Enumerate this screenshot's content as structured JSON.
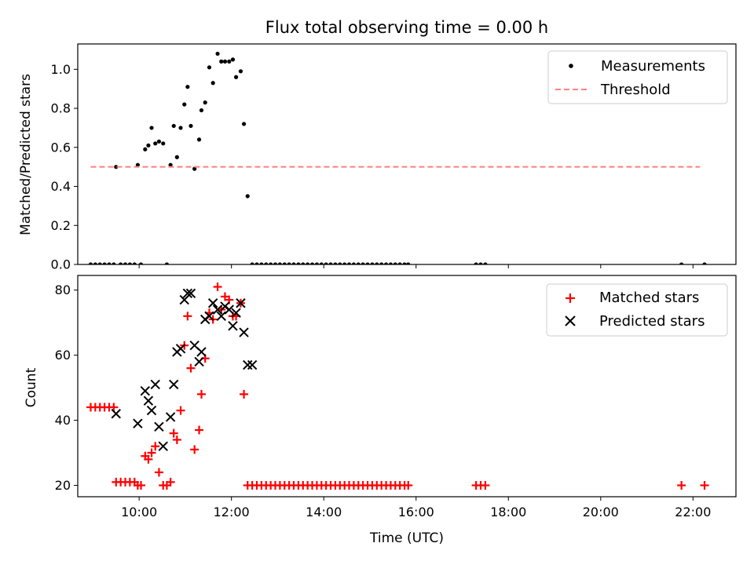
{
  "chart_data": [
    {
      "type": "scatter",
      "title": "Flux total observing time = 0.00 h",
      "xlabel": "",
      "ylabel": "Matched/Predicted stars",
      "xlim": [
        8.67,
        22.93
      ],
      "ylim": [
        0.0,
        1.13
      ],
      "yticks": [
        0.0,
        0.2,
        0.4,
        0.6,
        0.8,
        1.0
      ],
      "xticks": [
        10,
        12,
        14,
        16,
        18,
        20,
        22
      ],
      "show_xtick_labels": false,
      "grid": false,
      "legend": "top-right",
      "series": [
        {
          "name": "Measurements",
          "kind": "dot",
          "color": "#000000",
          "x": [
            8.95,
            9.05,
            9.15,
            9.25,
            9.35,
            9.45,
            9.5,
            9.6,
            9.7,
            9.8,
            9.9,
            9.97,
            10.04,
            10.13,
            10.2,
            10.27,
            10.35,
            10.43,
            10.52,
            10.6,
            10.68,
            10.75,
            10.82,
            10.9,
            10.98,
            11.05,
            11.12,
            11.2,
            11.3,
            11.35,
            11.43,
            11.52,
            11.6,
            11.7,
            11.78,
            11.86,
            11.95,
            12.03,
            12.1,
            12.2,
            12.27,
            12.35,
            12.45,
            12.55,
            12.65,
            12.75,
            12.85,
            12.95,
            13.05,
            13.15,
            13.25,
            13.35,
            13.45,
            13.55,
            13.65,
            13.75,
            13.85,
            13.95,
            14.05,
            14.15,
            14.25,
            14.35,
            14.45,
            14.55,
            14.65,
            14.75,
            14.85,
            14.95,
            15.05,
            15.15,
            15.25,
            15.35,
            15.45,
            15.55,
            15.65,
            15.75,
            15.83,
            17.3,
            17.4,
            17.5,
            21.75,
            22.25
          ],
          "y": [
            0.0,
            0.0,
            0.0,
            0.0,
            0.0,
            0.0,
            0.5,
            0.0,
            0.0,
            0.0,
            0.0,
            0.51,
            0.0,
            0.59,
            0.61,
            0.7,
            0.62,
            0.63,
            0.62,
            0.0,
            0.51,
            0.71,
            0.55,
            0.7,
            0.82,
            0.91,
            0.71,
            0.49,
            0.64,
            0.79,
            0.83,
            1.01,
            0.93,
            1.08,
            1.04,
            1.04,
            1.04,
            1.05,
            0.96,
            0.99,
            0.72,
            0.35,
            0.0,
            0.0,
            0.0,
            0.0,
            0.0,
            0.0,
            0.0,
            0.0,
            0.0,
            0.0,
            0.0,
            0.0,
            0.0,
            0.0,
            0.0,
            0.0,
            0.0,
            0.0,
            0.0,
            0.0,
            0.0,
            0.0,
            0.0,
            0.0,
            0.0,
            0.0,
            0.0,
            0.0,
            0.0,
            0.0,
            0.0,
            0.0,
            0.0,
            0.0,
            0.0,
            0.0,
            0.0,
            0.0,
            0.0,
            0.0
          ]
        },
        {
          "name": "Threshold",
          "kind": "dashed-line",
          "color": "#ff7f7f",
          "x": [
            8.95,
            22.15
          ],
          "y": [
            0.5,
            0.5
          ]
        }
      ]
    },
    {
      "type": "scatter",
      "title": "",
      "xlabel": "Time (UTC)",
      "ylabel": "Count",
      "xlim": [
        8.67,
        22.93
      ],
      "ylim": [
        16.5,
        84.5
      ],
      "yticks": [
        20,
        40,
        60,
        80
      ],
      "xticks": [
        10,
        12,
        14,
        16,
        18,
        20,
        22
      ],
      "xtick_labels": [
        "10:00",
        "12:00",
        "14:00",
        "16:00",
        "18:00",
        "20:00",
        "22:00"
      ],
      "show_xtick_labels": true,
      "grid": false,
      "legend": "top-right",
      "series": [
        {
          "name": "Matched stars",
          "kind": "plus",
          "color": "#ff0000",
          "x": [
            8.95,
            9.05,
            9.15,
            9.25,
            9.35,
            9.45,
            9.5,
            9.6,
            9.7,
            9.8,
            9.9,
            9.97,
            10.04,
            10.13,
            10.2,
            10.27,
            10.35,
            10.43,
            10.52,
            10.6,
            10.68,
            10.75,
            10.82,
            10.9,
            10.98,
            11.05,
            11.12,
            11.2,
            11.3,
            11.35,
            11.43,
            11.52,
            11.6,
            11.7,
            11.78,
            11.86,
            11.95,
            12.03,
            12.1,
            12.2,
            12.27,
            12.35,
            12.45,
            12.55,
            12.65,
            12.75,
            12.85,
            12.95,
            13.05,
            13.15,
            13.25,
            13.35,
            13.45,
            13.55,
            13.65,
            13.75,
            13.85,
            13.95,
            14.05,
            14.15,
            14.25,
            14.35,
            14.45,
            14.55,
            14.65,
            14.75,
            14.85,
            14.95,
            15.05,
            15.15,
            15.25,
            15.35,
            15.45,
            15.55,
            15.65,
            15.75,
            15.83,
            17.3,
            17.4,
            17.5,
            21.75,
            22.25
          ],
          "y": [
            44,
            44,
            44,
            44,
            44,
            44,
            21,
            21,
            21,
            21,
            21,
            20,
            20,
            29,
            28,
            30,
            32,
            24,
            20,
            20,
            21,
            36,
            34,
            43,
            63,
            72,
            56,
            31,
            37,
            48,
            59,
            73,
            71,
            81,
            74,
            78,
            77,
            72,
            72,
            76,
            48,
            20,
            20,
            20,
            20,
            20,
            20,
            20,
            20,
            20,
            20,
            20,
            20,
            20,
            20,
            20,
            20,
            20,
            20,
            20,
            20,
            20,
            20,
            20,
            20,
            20,
            20,
            20,
            20,
            20,
            20,
            20,
            20,
            20,
            20,
            20,
            20,
            20,
            20,
            20,
            20,
            20
          ]
        },
        {
          "name": "Predicted stars",
          "kind": "cross",
          "color": "#000000",
          "x": [
            9.5,
            9.97,
            10.13,
            10.2,
            10.27,
            10.35,
            10.43,
            10.52,
            10.68,
            10.75,
            10.82,
            10.9,
            10.98,
            11.05,
            11.12,
            11.2,
            11.3,
            11.35,
            11.43,
            11.52,
            11.6,
            11.7,
            11.78,
            11.86,
            11.95,
            12.03,
            12.1,
            12.2,
            12.27,
            12.35,
            12.45
          ],
          "y": [
            42,
            39,
            49,
            46,
            43,
            51,
            38,
            32,
            41,
            51,
            61,
            62,
            77,
            79,
            79,
            63,
            58,
            61,
            71,
            72,
            76,
            74,
            72,
            75,
            74,
            69,
            73,
            76,
            67,
            57,
            57
          ]
        }
      ]
    }
  ]
}
